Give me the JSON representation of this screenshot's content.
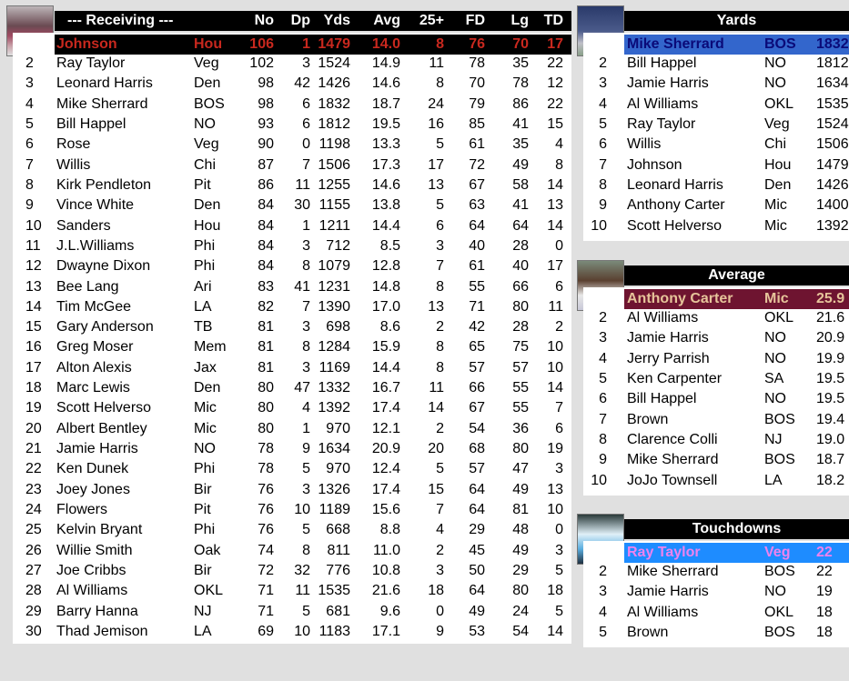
{
  "receiving": {
    "title": "--- Receiving ---",
    "columns": [
      "No",
      "Dp",
      "Yds",
      "Avg",
      "25+",
      "FD",
      "Lg",
      "TD"
    ],
    "leader_colors": {
      "bg": "#000000",
      "text": "#c8281e"
    },
    "rows": [
      {
        "rank": "",
        "name": "Johnson",
        "team": "Hou",
        "stats": [
          "106",
          "1",
          "1479",
          "14.0",
          "8",
          "76",
          "70",
          "17"
        ]
      },
      {
        "rank": "2",
        "name": "Ray Taylor",
        "team": "Veg",
        "stats": [
          "102",
          "3",
          "1524",
          "14.9",
          "11",
          "78",
          "35",
          "22"
        ]
      },
      {
        "rank": "3",
        "name": "Leonard Harris",
        "team": "Den",
        "stats": [
          "98",
          "42",
          "1426",
          "14.6",
          "8",
          "70",
          "78",
          "12"
        ]
      },
      {
        "rank": "4",
        "name": "Mike Sherrard",
        "team": "BOS",
        "stats": [
          "98",
          "6",
          "1832",
          "18.7",
          "24",
          "79",
          "86",
          "22"
        ]
      },
      {
        "rank": "5",
        "name": "Bill Happel",
        "team": "NO",
        "stats": [
          "93",
          "6",
          "1812",
          "19.5",
          "16",
          "85",
          "41",
          "15"
        ]
      },
      {
        "rank": "6",
        "name": "Rose",
        "team": "Veg",
        "stats": [
          "90",
          "0",
          "1198",
          "13.3",
          "5",
          "61",
          "35",
          "4"
        ]
      },
      {
        "rank": "7",
        "name": "Willis",
        "team": "Chi",
        "stats": [
          "87",
          "7",
          "1506",
          "17.3",
          "17",
          "72",
          "49",
          "8"
        ]
      },
      {
        "rank": "8",
        "name": "Kirk Pendleton",
        "team": "Pit",
        "stats": [
          "86",
          "11",
          "1255",
          "14.6",
          "13",
          "67",
          "58",
          "14"
        ]
      },
      {
        "rank": "9",
        "name": "Vince White",
        "team": "Den",
        "stats": [
          "84",
          "30",
          "1155",
          "13.8",
          "5",
          "63",
          "41",
          "13"
        ]
      },
      {
        "rank": "10",
        "name": "Sanders",
        "team": "Hou",
        "stats": [
          "84",
          "1",
          "1211",
          "14.4",
          "6",
          "64",
          "64",
          "14"
        ]
      },
      {
        "rank": "11",
        "name": "J.L.Williams",
        "team": "Phi",
        "stats": [
          "84",
          "3",
          "712",
          "8.5",
          "3",
          "40",
          "28",
          "0"
        ]
      },
      {
        "rank": "12",
        "name": "Dwayne Dixon",
        "team": "Phi",
        "stats": [
          "84",
          "8",
          "1079",
          "12.8",
          "7",
          "61",
          "40",
          "17"
        ]
      },
      {
        "rank": "13",
        "name": "Bee Lang",
        "team": "Ari",
        "stats": [
          "83",
          "41",
          "1231",
          "14.8",
          "8",
          "55",
          "66",
          "6"
        ]
      },
      {
        "rank": "14",
        "name": "Tim McGee",
        "team": "LA",
        "stats": [
          "82",
          "7",
          "1390",
          "17.0",
          "13",
          "71",
          "80",
          "11"
        ]
      },
      {
        "rank": "15",
        "name": "Gary Anderson",
        "team": "TB",
        "stats": [
          "81",
          "3",
          "698",
          "8.6",
          "2",
          "42",
          "28",
          "2"
        ]
      },
      {
        "rank": "16",
        "name": "Greg Moser",
        "team": "Mem",
        "stats": [
          "81",
          "8",
          "1284",
          "15.9",
          "8",
          "65",
          "75",
          "10"
        ]
      },
      {
        "rank": "17",
        "name": "Alton Alexis",
        "team": "Jax",
        "stats": [
          "81",
          "3",
          "1169",
          "14.4",
          "8",
          "57",
          "57",
          "10"
        ]
      },
      {
        "rank": "18",
        "name": "Marc Lewis",
        "team": "Den",
        "stats": [
          "80",
          "47",
          "1332",
          "16.7",
          "11",
          "66",
          "55",
          "14"
        ]
      },
      {
        "rank": "19",
        "name": "Scott Helverso",
        "team": "Mic",
        "stats": [
          "80",
          "4",
          "1392",
          "17.4",
          "14",
          "67",
          "55",
          "7"
        ]
      },
      {
        "rank": "20",
        "name": "Albert Bentley",
        "team": "Mic",
        "stats": [
          "80",
          "1",
          "970",
          "12.1",
          "2",
          "54",
          "36",
          "6"
        ]
      },
      {
        "rank": "21",
        "name": "Jamie Harris",
        "team": "NO",
        "stats": [
          "78",
          "9",
          "1634",
          "20.9",
          "20",
          "68",
          "80",
          "19"
        ]
      },
      {
        "rank": "22",
        "name": "Ken Dunek",
        "team": "Phi",
        "stats": [
          "78",
          "5",
          "970",
          "12.4",
          "5",
          "57",
          "47",
          "3"
        ]
      },
      {
        "rank": "23",
        "name": "Joey Jones",
        "team": "Bir",
        "stats": [
          "76",
          "3",
          "1326",
          "17.4",
          "15",
          "64",
          "49",
          "13"
        ]
      },
      {
        "rank": "24",
        "name": "Flowers",
        "team": "Pit",
        "stats": [
          "76",
          "10",
          "1189",
          "15.6",
          "7",
          "64",
          "81",
          "10"
        ]
      },
      {
        "rank": "25",
        "name": "Kelvin Bryant",
        "team": "Phi",
        "stats": [
          "76",
          "5",
          "668",
          "8.8",
          "4",
          "29",
          "48",
          "0"
        ]
      },
      {
        "rank": "26",
        "name": "Willie Smith",
        "team": "Oak",
        "stats": [
          "74",
          "8",
          "811",
          "11.0",
          "2",
          "45",
          "49",
          "3"
        ]
      },
      {
        "rank": "27",
        "name": "Joe Cribbs",
        "team": "Bir",
        "stats": [
          "72",
          "32",
          "776",
          "10.8",
          "3",
          "50",
          "29",
          "5"
        ]
      },
      {
        "rank": "28",
        "name": "Al Williams",
        "team": "OKL",
        "stats": [
          "71",
          "11",
          "1535",
          "21.6",
          "18",
          "64",
          "80",
          "18"
        ]
      },
      {
        "rank": "29",
        "name": "Barry Hanna",
        "team": "NJ",
        "stats": [
          "71",
          "5",
          "681",
          "9.6",
          "0",
          "49",
          "24",
          "5"
        ]
      },
      {
        "rank": "30",
        "name": "Thad Jemison",
        "team": "LA",
        "stats": [
          "69",
          "10",
          "1183",
          "17.1",
          "9",
          "53",
          "54",
          "14"
        ]
      }
    ]
  },
  "leaders": [
    {
      "title": "Yards",
      "leader_colors": {
        "bg": "#3366cc",
        "text": "#0a0a78"
      },
      "rows": [
        {
          "rank": "",
          "name": "Mike Sherrard",
          "team": "BOS",
          "value": "1832"
        },
        {
          "rank": "2",
          "name": "Bill Happel",
          "team": "NO",
          "value": "1812"
        },
        {
          "rank": "3",
          "name": "Jamie Harris",
          "team": "NO",
          "value": "1634"
        },
        {
          "rank": "4",
          "name": "Al Williams",
          "team": "OKL",
          "value": "1535"
        },
        {
          "rank": "5",
          "name": "Ray Taylor",
          "team": "Veg",
          "value": "1524"
        },
        {
          "rank": "6",
          "name": "Willis",
          "team": "Chi",
          "value": "1506"
        },
        {
          "rank": "7",
          "name": "Johnson",
          "team": "Hou",
          "value": "1479"
        },
        {
          "rank": "8",
          "name": "Leonard Harris",
          "team": "Den",
          "value": "1426"
        },
        {
          "rank": "9",
          "name": "Anthony Carter",
          "team": "Mic",
          "value": "1400"
        },
        {
          "rank": "10",
          "name": "Scott Helverso",
          "team": "Mic",
          "value": "1392"
        }
      ]
    },
    {
      "title": "Average",
      "leader_colors": {
        "bg": "#6e1430",
        "text": "#e6c49a"
      },
      "rows": [
        {
          "rank": "",
          "name": "Anthony Carter",
          "team": "Mic",
          "value": "25.9"
        },
        {
          "rank": "2",
          "name": "Al Williams",
          "team": "OKL",
          "value": "21.6"
        },
        {
          "rank": "3",
          "name": "Jamie Harris",
          "team": "NO",
          "value": "20.9"
        },
        {
          "rank": "4",
          "name": "Jerry Parrish",
          "team": "NO",
          "value": "19.9"
        },
        {
          "rank": "5",
          "name": "Ken Carpenter",
          "team": "SA",
          "value": "19.5"
        },
        {
          "rank": "6",
          "name": "Bill Happel",
          "team": "NO",
          "value": "19.5"
        },
        {
          "rank": "7",
          "name": "Brown",
          "team": "BOS",
          "value": "19.4"
        },
        {
          "rank": "8",
          "name": "Clarence Colli",
          "team": "NJ",
          "value": "19.0"
        },
        {
          "rank": "9",
          "name": "Mike Sherrard",
          "team": "BOS",
          "value": "18.7"
        },
        {
          "rank": "10",
          "name": "JoJo Townsell",
          "team": "LA",
          "value": "18.2"
        }
      ]
    },
    {
      "title": "Touchdowns",
      "leader_colors": {
        "bg": "#1e8cff",
        "text": "#ee82ee"
      },
      "rows": [
        {
          "rank": "",
          "name": "Ray Taylor",
          "team": "Veg",
          "value": "22"
        },
        {
          "rank": "2",
          "name": "Mike Sherrard",
          "team": "BOS",
          "value": "22"
        },
        {
          "rank": "3",
          "name": "Jamie Harris",
          "team": "NO",
          "value": "19"
        },
        {
          "rank": "4",
          "name": "Al Williams",
          "team": "OKL",
          "value": "18"
        },
        {
          "rank": "5",
          "name": "Brown",
          "team": "BOS",
          "value": "18"
        }
      ]
    }
  ]
}
